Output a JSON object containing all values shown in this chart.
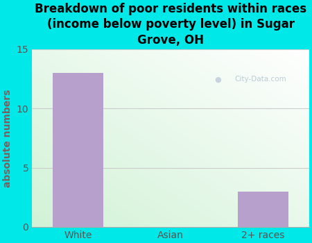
{
  "categories": [
    "White",
    "Asian",
    "2+ races"
  ],
  "values": [
    13,
    0,
    3
  ],
  "bar_color": "#b8a0cc",
  "title": "Breakdown of poor residents within races\n(income below poverty level) in Sugar\nGrove, OH",
  "ylabel": "absolute numbers",
  "ylim": [
    0,
    15
  ],
  "yticks": [
    0,
    5,
    10,
    15
  ],
  "background_color": "#00e8e8",
  "watermark": "City-Data.com",
  "bar_width": 0.55,
  "title_fontsize": 12,
  "label_fontsize": 10,
  "ylabel_color": "#7a6060",
  "tick_color": "#555555",
  "grid_color": "#cccccc",
  "spine_color": "#aaaaaa"
}
